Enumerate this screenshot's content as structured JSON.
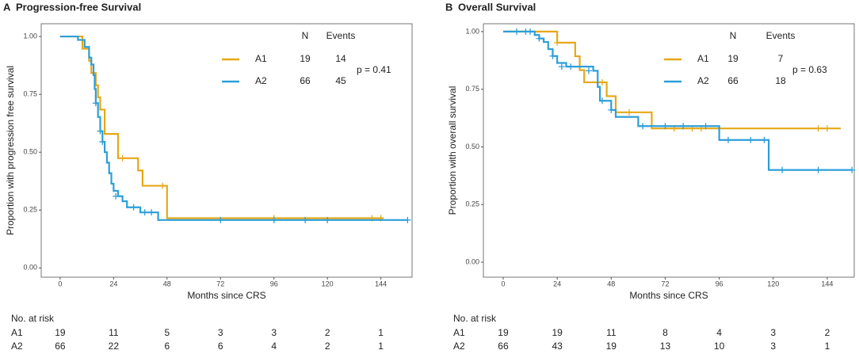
{
  "chart_data": [
    {
      "type": "step",
      "panel": "A",
      "title": "Progression-free Survival",
      "xlabel": "Months since CRS",
      "ylabel": "Proportion with progression free survival",
      "xlim": [
        -8.5,
        158
      ],
      "ylim": [
        -0.04,
        1.055
      ],
      "xticks": [
        0,
        24,
        48,
        72,
        96,
        120,
        144
      ],
      "yticks": [
        {
          "value": 0,
          "label": "0.00"
        },
        {
          "value": 0.25,
          "label": "0.25"
        },
        {
          "value": 0.5,
          "label": "0.50"
        },
        {
          "value": 0.75,
          "label": "0.75"
        },
        {
          "value": 1,
          "label": "1.00"
        }
      ],
      "legend_headers": [
        "N",
        "Events"
      ],
      "annotation": "p = 0.41",
      "risk_table_title": "No. at risk",
      "series": [
        {
          "name": "A1",
          "color": "#e6a817",
          "n": 19,
          "events": 14,
          "x": [
            0,
            10,
            13,
            14,
            16,
            17,
            18,
            20,
            26,
            35,
            37,
            48,
            145
          ],
          "values": [
            1,
            0.947,
            0.895,
            0.842,
            0.789,
            0.737,
            0.684,
            0.579,
            0.474,
            0.421,
            0.355,
            0.215,
            0.215
          ],
          "censor_x": [
            28,
            46,
            96,
            140,
            144
          ],
          "censor_values": [
            0.474,
            0.355,
            0.215,
            0.215,
            0.215
          ],
          "at_risk": [
            19,
            11,
            5,
            3,
            3,
            2,
            1
          ]
        },
        {
          "name": "A2",
          "color": "#2c9fd9",
          "n": 66,
          "events": 45,
          "x": [
            0,
            8,
            11,
            13,
            14,
            15,
            15.5,
            16,
            17,
            18,
            19,
            20,
            21,
            22,
            23,
            24,
            26,
            28,
            30,
            36,
            44,
            156
          ],
          "values": [
            1,
            0.985,
            0.955,
            0.909,
            0.879,
            0.833,
            0.773,
            0.712,
            0.652,
            0.591,
            0.545,
            0.5,
            0.455,
            0.409,
            0.364,
            0.333,
            0.31,
            0.288,
            0.262,
            0.24,
            0.207,
            0.207
          ],
          "censor_x": [
            16,
            18,
            19,
            25,
            33,
            38,
            41,
            72,
            96,
            110,
            120,
            156
          ],
          "censor_values": [
            0.712,
            0.591,
            0.545,
            0.31,
            0.262,
            0.24,
            0.24,
            0.207,
            0.207,
            0.207,
            0.207,
            0.207
          ],
          "at_risk": [
            66,
            22,
            6,
            6,
            4,
            2,
            1
          ]
        }
      ]
    },
    {
      "type": "step",
      "panel": "B",
      "title": "Overall Survival",
      "xlabel": "Months since CRS",
      "ylabel": "Proportion with overall survival",
      "xlim": [
        -8.8,
        156
      ],
      "ylim": [
        -0.065,
        1.034
      ],
      "xticks": [
        0,
        24,
        48,
        72,
        96,
        120,
        144
      ],
      "yticks": [
        {
          "value": 0,
          "label": "0.00"
        },
        {
          "value": 0.25,
          "label": "0.25"
        },
        {
          "value": 0.5,
          "label": "0.50"
        },
        {
          "value": 0.75,
          "label": "0.75"
        },
        {
          "value": 1,
          "label": "1.00"
        }
      ],
      "legend_headers": [
        "N",
        "Events"
      ],
      "annotation": "p = 0.63",
      "risk_table_title": "No. at risk",
      "series": [
        {
          "name": "A1",
          "color": "#e6a817",
          "n": 19,
          "events": 7,
          "x": [
            0,
            24,
            32,
            34,
            36,
            46,
            50,
            66,
            150
          ],
          "values": [
            1,
            0.952,
            0.893,
            0.833,
            0.78,
            0.72,
            0.65,
            0.58,
            0.58
          ],
          "censor_x": [
            24,
            44,
            56,
            76,
            84,
            88,
            140,
            144
          ],
          "censor_values": [
            0.952,
            0.78,
            0.65,
            0.58,
            0.58,
            0.58,
            0.58,
            0.58
          ],
          "at_risk": [
            19,
            19,
            11,
            8,
            4,
            3,
            2
          ]
        },
        {
          "name": "A2",
          "color": "#2c9fd9",
          "n": 66,
          "events": 18,
          "x": [
            0,
            14,
            16,
            18,
            20,
            22,
            24,
            28,
            40,
            42,
            43,
            48,
            50,
            60,
            96,
            118,
            155
          ],
          "values": [
            1,
            0.985,
            0.97,
            0.955,
            0.924,
            0.894,
            0.864,
            0.848,
            0.83,
            0.76,
            0.7,
            0.66,
            0.63,
            0.59,
            0.53,
            0.4,
            0.4
          ],
          "censor_x": [
            6,
            10,
            12,
            16,
            22,
            26,
            30,
            38,
            44,
            48,
            62,
            72,
            80,
            90,
            100,
            110,
            116,
            124,
            140,
            155
          ],
          "censor_values": [
            1,
            1,
            1,
            0.97,
            0.894,
            0.848,
            0.848,
            0.83,
            0.7,
            0.66,
            0.59,
            0.59,
            0.59,
            0.59,
            0.53,
            0.53,
            0.53,
            0.4,
            0.4,
            0.4
          ],
          "at_risk": [
            66,
            43,
            19,
            13,
            10,
            3,
            1
          ]
        }
      ]
    }
  ]
}
